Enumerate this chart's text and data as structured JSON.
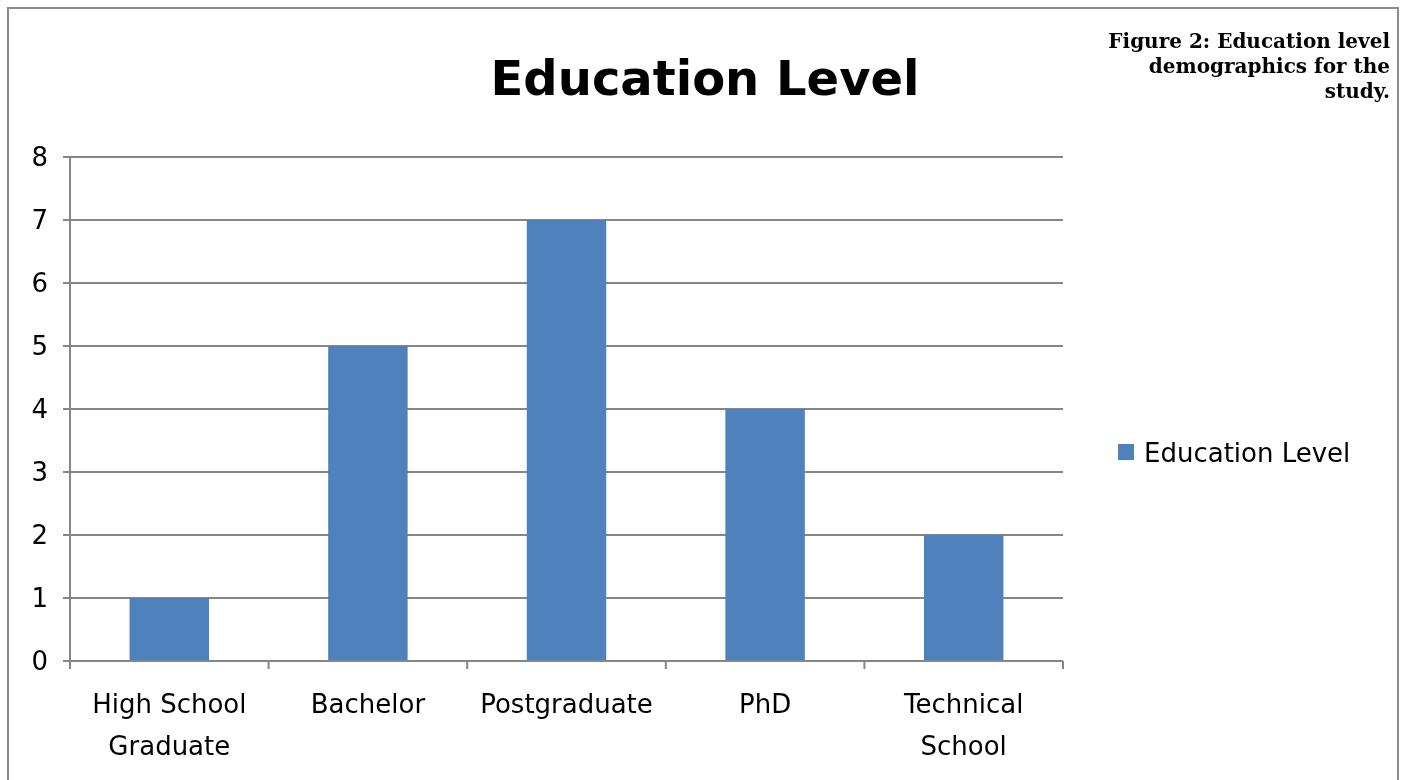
{
  "chart_data": {
    "type": "bar",
    "title": "Education Level",
    "annotations": [
      "Figure 2: Education level demographics for the study."
    ],
    "categories": [
      "High School Graduate",
      "Bachelor",
      "Postgraduate",
      "PhD",
      "Technical School"
    ],
    "series": [
      {
        "name": "Education Level",
        "color": "#4f81bd",
        "values": [
          1,
          5,
          7,
          4,
          2
        ]
      }
    ],
    "ylim": [
      0,
      8
    ],
    "yticks": [
      0,
      1,
      2,
      3,
      4,
      5,
      6,
      7,
      8
    ],
    "grid": "y",
    "legend": "right"
  }
}
